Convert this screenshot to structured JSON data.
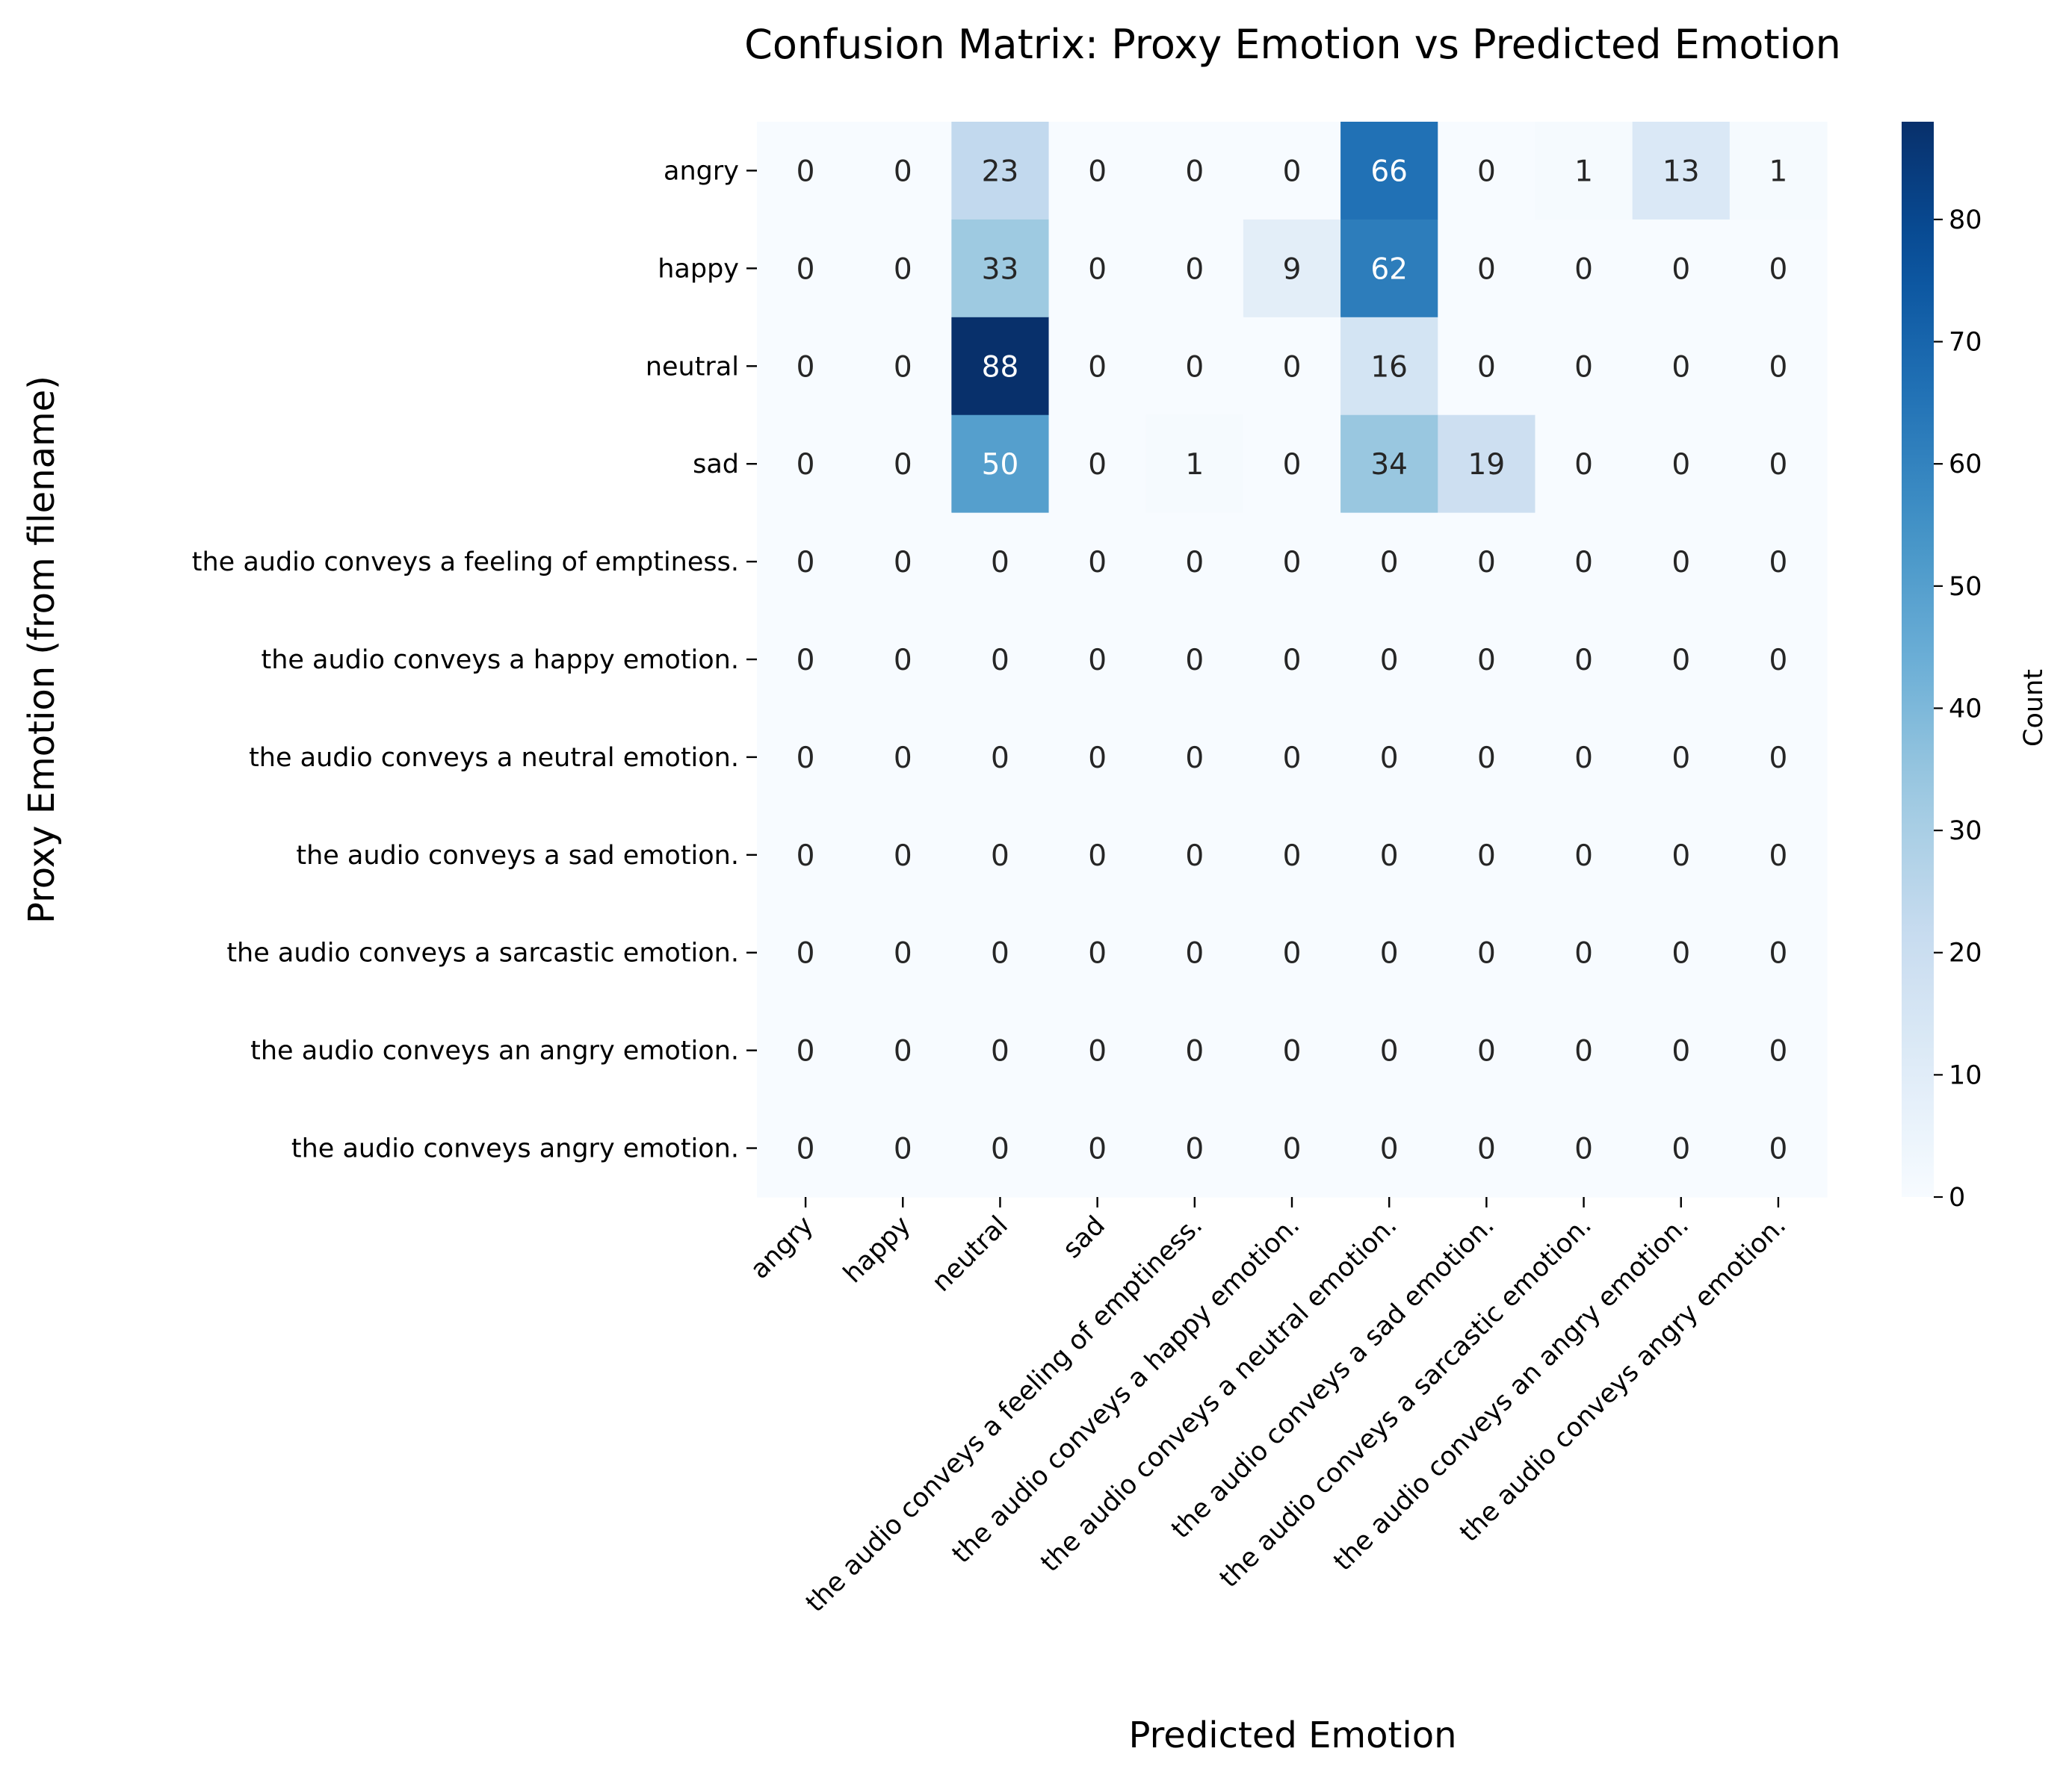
{
  "chart_data": {
    "type": "heatmap",
    "title": "Confusion Matrix: Proxy Emotion vs Predicted Emotion",
    "xlabel": "Predicted Emotion",
    "ylabel": "Proxy Emotion (from filename)",
    "row_labels": [
      "angry",
      "happy",
      "neutral",
      "sad",
      "the audio conveys a feeling of emptiness.",
      "the audio conveys a happy emotion.",
      "the audio conveys a neutral emotion.",
      "the audio conveys a sad emotion.",
      "the audio conveys a sarcastic emotion.",
      "the audio conveys an angry emotion.",
      "the audio conveys angry emotion."
    ],
    "col_labels": [
      "angry",
      "happy",
      "neutral",
      "sad",
      "the audio conveys a feeling of emptiness.",
      "the audio conveys a happy emotion.",
      "the audio conveys a neutral emotion.",
      "the audio conveys a sad emotion.",
      "the audio conveys a sarcastic emotion.",
      "the audio conveys an angry emotion.",
      "the audio conveys angry emotion."
    ],
    "values": [
      [
        0,
        0,
        23,
        0,
        0,
        0,
        66,
        0,
        1,
        13,
        1
      ],
      [
        0,
        0,
        33,
        0,
        0,
        9,
        62,
        0,
        0,
        0,
        0
      ],
      [
        0,
        0,
        88,
        0,
        0,
        0,
        16,
        0,
        0,
        0,
        0
      ],
      [
        0,
        0,
        50,
        0,
        1,
        0,
        34,
        19,
        0,
        0,
        0
      ],
      [
        0,
        0,
        0,
        0,
        0,
        0,
        0,
        0,
        0,
        0,
        0
      ],
      [
        0,
        0,
        0,
        0,
        0,
        0,
        0,
        0,
        0,
        0,
        0
      ],
      [
        0,
        0,
        0,
        0,
        0,
        0,
        0,
        0,
        0,
        0,
        0
      ],
      [
        0,
        0,
        0,
        0,
        0,
        0,
        0,
        0,
        0,
        0,
        0
      ],
      [
        0,
        0,
        0,
        0,
        0,
        0,
        0,
        0,
        0,
        0,
        0
      ],
      [
        0,
        0,
        0,
        0,
        0,
        0,
        0,
        0,
        0,
        0,
        0
      ],
      [
        0,
        0,
        0,
        0,
        0,
        0,
        0,
        0,
        0,
        0,
        0
      ]
    ],
    "colormap": "Blues",
    "vmin": 0,
    "vmax": 88,
    "colorbar": {
      "label": "Count",
      "ticks": [
        0,
        10,
        20,
        30,
        40,
        50,
        60,
        70,
        80
      ]
    },
    "annotations": true,
    "grid": false
  }
}
